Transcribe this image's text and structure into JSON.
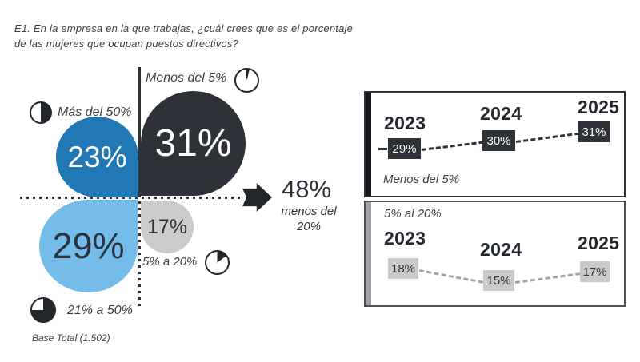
{
  "title": {
    "line1": "E1. En la empresa en la que trabajas, ¿cuál crees que es el porcentaje",
    "line2": "de las mujeres que ocupan puestos directivos?"
  },
  "bubbles": [
    {
      "label": "Más del 50%",
      "value": "23%",
      "color": "#2277b5",
      "icon": "pie-half-filled-icon"
    },
    {
      "label": "Menos del 5%",
      "value": "31%",
      "color": "#2e3238",
      "icon": "pie-5pct-sliver-icon"
    },
    {
      "label": "21% a 50%",
      "value": "29%",
      "color": "#74bcea",
      "icon": "pie-75pct-icon"
    },
    {
      "label": "5% a 20%",
      "value": "17%",
      "color": "#cacbcb",
      "icon": "pie-15pct-wedge-icon"
    }
  ],
  "callout": {
    "value": "48%",
    "label": "menos del 20%"
  },
  "panels": [
    {
      "label": "Menos del 5%",
      "accent_color": "#16181b",
      "points": [
        {
          "year": "2023",
          "value": "29%"
        },
        {
          "year": "2024",
          "value": "30%"
        },
        {
          "year": "2025",
          "value": "31%"
        }
      ]
    },
    {
      "label": "5% al 20%",
      "accent_color": "#9ea2a4",
      "points": [
        {
          "year": "2023",
          "value": "18%"
        },
        {
          "year": "2024",
          "value": "15%"
        },
        {
          "year": "2025",
          "value": "17%"
        }
      ]
    }
  ],
  "footer": {
    "base_total": "Base Total (1.502)"
  },
  "icons": {
    "mas_del_50": "pie-half-filled-icon",
    "menos_del_5": "pie-5pct-sliver-icon",
    "21_a_50": "pie-75pct-icon",
    "5_a_20": "pie-15pct-wedge-icon",
    "arrow": "right-arrow-icon"
  },
  "colors": {
    "dark": "#2e3238",
    "blue": "#2277b5",
    "light_blue": "#74bcea",
    "gray_bubble": "#cacbcb",
    "gray_accent": "#9ea2a4",
    "text": "#3a3e44"
  },
  "chart_data": [
    {
      "type": "bubble",
      "title": "E1. En la empresa en la que trabajas, ¿cuál crees que es el porcentaje de las mujeres que ocupan puestos directivos?",
      "categories": [
        "Menos del 5%",
        "5% a 20%",
        "21% a 50%",
        "Más del 50%"
      ],
      "values": [
        31,
        17,
        29,
        23
      ],
      "annotation": {
        "value": 48,
        "label": "menos del 20%"
      },
      "note": "Base Total (1.502)"
    },
    {
      "type": "line",
      "title": "Menos del 5%",
      "x": [
        "2023",
        "2024",
        "2025"
      ],
      "values": [
        29,
        30,
        31
      ],
      "line_style": "dashed",
      "ylim": [
        25,
        35
      ]
    },
    {
      "type": "line",
      "title": "5% al 20%",
      "x": [
        "2023",
        "2024",
        "2025"
      ],
      "values": [
        18,
        15,
        17
      ],
      "line_style": "dashed",
      "ylim": [
        12,
        22
      ]
    }
  ]
}
